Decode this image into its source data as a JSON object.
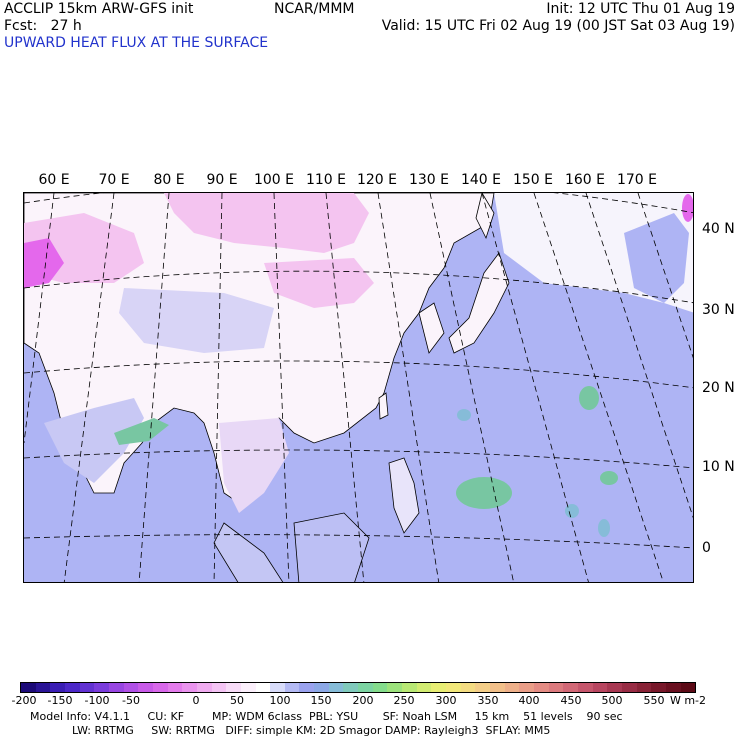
{
  "header": {
    "model_line": "ACCLIP 15km ARW-GFS init",
    "fcst_line": "Fcst:   27 h",
    "center_line": "NCAR/MMM",
    "init_line": "Init: 12 UTC Thu 01 Aug 19",
    "valid_line": "Valid: 15 UTC Fri 02 Aug 19 (00 JST Sat 03 Aug 19)",
    "field_title": "UPWARD HEAT FLUX AT THE SURFACE"
  },
  "map": {
    "lon_labels": [
      "60 E",
      "70 E",
      "80 E",
      "90 E",
      "100 E",
      "110 E",
      "120 E",
      "130 E",
      "140 E",
      "150 E",
      "160 E",
      "170 E"
    ],
    "lat_labels": [
      "40 N",
      "30 N",
      "20 N",
      "10 N",
      "0"
    ],
    "colors": {
      "ocean": "#aeb4f4",
      "land_white": "#fbf4fb",
      "land_pink": "#f4c4f0",
      "hot_magenta": "#e468ec",
      "green_patch": "#78c6a2"
    }
  },
  "colorbar": {
    "labels": [
      "-200",
      "-150",
      "-100",
      "-50",
      "0",
      "50",
      "100",
      "150",
      "200",
      "250",
      "300",
      "350",
      "400",
      "450",
      "500",
      "550"
    ],
    "units": "W m-2",
    "colors": [
      "#1c0a78",
      "#2a1496",
      "#3a1eb4",
      "#4c28c8",
      "#6232d2",
      "#7a3cdc",
      "#9846e2",
      "#b050e6",
      "#c85ae8",
      "#d868ea",
      "#e47cec",
      "#ea94ee",
      "#f0acf0",
      "#f4c4f4",
      "#f8dcf8",
      "#fcf0fc",
      "#ffffff",
      "#d8dcfa",
      "#b4baf4",
      "#9aa2ee",
      "#8ca8e6",
      "#86bcd8",
      "#80cabc",
      "#7cd4a2",
      "#84dc8c",
      "#9ce27c",
      "#b8e874",
      "#d2ec72",
      "#e8ee74",
      "#f2e87a",
      "#f4dc82",
      "#f4ce88",
      "#f2c08a",
      "#eeb08a",
      "#ea9e88",
      "#e48c84",
      "#dc7a7e",
      "#d26876",
      "#c6566c",
      "#b84660",
      "#a83852",
      "#982c44",
      "#882236",
      "#78182a",
      "#6a1020",
      "#5c0a16"
    ]
  },
  "footer": {
    "line1": "Model Info: V4.1.1     CU: KF        MP: WDM 6class  PBL: YSU       SF: Noah LSM     15 km    51 levels    90 sec",
    "line2": "            LW: RRTMG     SW: RRTMG   DIFF: simple KM: 2D Smagor DAMP: Rayleigh3  SFLAY: MM5"
  }
}
